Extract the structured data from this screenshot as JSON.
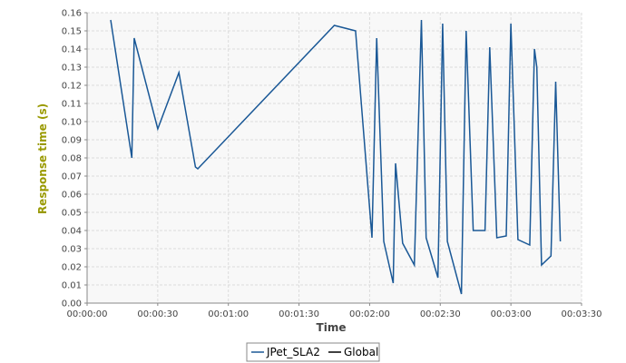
{
  "chart_data": {
    "type": "line",
    "xlabel": "Time",
    "ylabel": "Response time (s)",
    "xlim": [
      "00:00:00",
      "00:03:30"
    ],
    "ylim": [
      0,
      0.16
    ],
    "x_ticks": [
      "00:00:00",
      "00:00:30",
      "00:01:00",
      "00:01:30",
      "00:02:00",
      "00:02:30",
      "00:03:00",
      "00:03:30"
    ],
    "y_ticks": [
      "0.00",
      "0.01",
      "0.02",
      "0.03",
      "0.04",
      "0.05",
      "0.06",
      "0.07",
      "0.08",
      "0.09",
      "0.10",
      "0.11",
      "0.12",
      "0.13",
      "0.14",
      "0.15",
      "0.16"
    ],
    "grid": true,
    "legend_position": "bottom-center",
    "colors": {
      "series": "#1a5896",
      "plot_background": "#f8f8f8",
      "axis_title": "#999900",
      "grid": "#dddddd"
    },
    "series": [
      {
        "name": "JPet_SLA2",
        "color": "#1a5896",
        "points": [
          {
            "x": "00:00:10",
            "y": 0.156
          },
          {
            "x": "00:00:19",
            "y": 0.08
          },
          {
            "x": "00:00:20",
            "y": 0.146
          },
          {
            "x": "00:00:30",
            "y": 0.096
          },
          {
            "x": "00:00:39",
            "y": 0.127
          },
          {
            "x": "00:00:46",
            "y": 0.075
          },
          {
            "x": "00:00:47",
            "y": 0.074
          },
          {
            "x": "00:01:45",
            "y": 0.153
          },
          {
            "x": "00:01:54",
            "y": 0.15
          },
          {
            "x": "00:02:01",
            "y": 0.036
          },
          {
            "x": "00:02:03",
            "y": 0.146
          },
          {
            "x": "00:02:06",
            "y": 0.034
          },
          {
            "x": "00:02:10",
            "y": 0.011
          },
          {
            "x": "00:02:11",
            "y": 0.077
          },
          {
            "x": "00:02:14",
            "y": 0.033
          },
          {
            "x": "00:02:19",
            "y": 0.021
          },
          {
            "x": "00:02:22",
            "y": 0.156
          },
          {
            "x": "00:02:24",
            "y": 0.036
          },
          {
            "x": "00:02:29",
            "y": 0.014
          },
          {
            "x": "00:02:31",
            "y": 0.154
          },
          {
            "x": "00:02:33",
            "y": 0.034
          },
          {
            "x": "00:02:39",
            "y": 0.005
          },
          {
            "x": "00:02:41",
            "y": 0.15
          },
          {
            "x": "00:02:44",
            "y": 0.04
          },
          {
            "x": "00:02:49",
            "y": 0.04
          },
          {
            "x": "00:02:51",
            "y": 0.141
          },
          {
            "x": "00:02:54",
            "y": 0.036
          },
          {
            "x": "00:02:58",
            "y": 0.037
          },
          {
            "x": "00:03:00",
            "y": 0.154
          },
          {
            "x": "00:03:03",
            "y": 0.035
          },
          {
            "x": "00:03:08",
            "y": 0.032
          },
          {
            "x": "00:03:10",
            "y": 0.14
          },
          {
            "x": "00:03:11",
            "y": 0.13
          },
          {
            "x": "00:03:13",
            "y": 0.021
          },
          {
            "x": "00:03:17",
            "y": 0.026
          },
          {
            "x": "00:03:19",
            "y": 0.122
          },
          {
            "x": "00:03:21",
            "y": 0.034
          }
        ]
      }
    ],
    "legend": [
      {
        "label": "JPet_SLA2",
        "color": "#1a5896"
      },
      {
        "label": "Global",
        "color": "#000000"
      }
    ]
  }
}
